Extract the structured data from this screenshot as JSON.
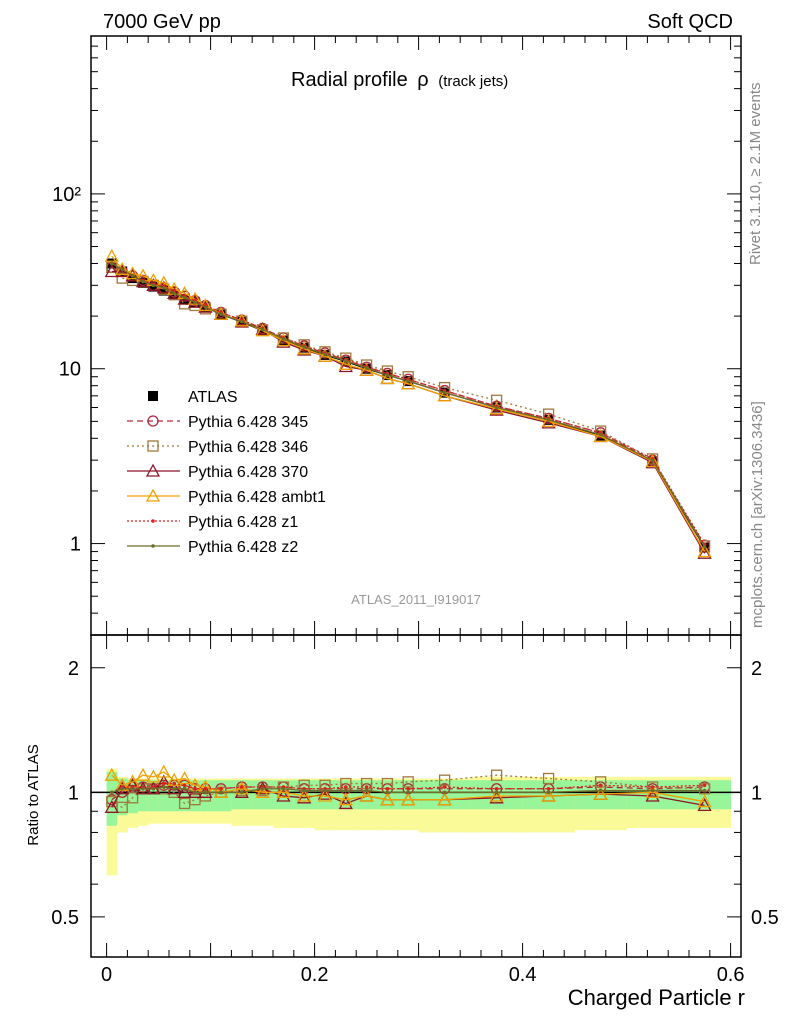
{
  "header": {
    "left": "7000 GeV pp",
    "right": "Soft QCD",
    "title_main": "Radial profile",
    "title_symbol": "ρ",
    "title_sub": "(track jets)",
    "side_top": "Rivet 3.1.10, ≥ 2.1M events",
    "side_bottom": "mcplots.cern.ch [arXiv:1306.3436]",
    "analysis_id": "ATLAS_2011_I919017"
  },
  "colors": {
    "atlas": "#000000",
    "p345": "#b0283c",
    "p346": "#a0783c",
    "p370": "#8c1428",
    "ambt1": "#f0a000",
    "z1": "#e02020",
    "z2": "#6e6e28",
    "band_inner": "#99f599",
    "band_outer": "#fafa99"
  },
  "chart_data": [
    {
      "type": "line",
      "yscale": "log",
      "ylim": [
        0.3,
        800
      ],
      "xlim": [
        -0.015,
        0.61
      ],
      "y_tick_labels": [
        "1",
        "10",
        "10²"
      ],
      "legend_position": "middle-left",
      "x": [
        0.005,
        0.015,
        0.025,
        0.035,
        0.045,
        0.055,
        0.065,
        0.075,
        0.085,
        0.095,
        0.11,
        0.13,
        0.15,
        0.17,
        0.19,
        0.21,
        0.23,
        0.25,
        0.27,
        0.29,
        0.325,
        0.375,
        0.425,
        0.475,
        0.525,
        0.575
      ],
      "series": [
        {
          "name": "ATLAS",
          "key": "atlas",
          "marker": "square-filled",
          "values": [
            40,
            36,
            33,
            31,
            29.5,
            28,
            26.5,
            25,
            24,
            22.5,
            20.5,
            18.5,
            16.5,
            14.5,
            13.2,
            12,
            11,
            10,
            9.2,
            8.5,
            7.3,
            6,
            5.1,
            4.15,
            2.95,
            0.95
          ]
        },
        {
          "name": "Pythia 6.428 345",
          "key": "p345",
          "marker": "circle-open",
          "dash": "6,4",
          "values": [
            38,
            36,
            34,
            32,
            30,
            29,
            27.5,
            26,
            24.5,
            23,
            21,
            19,
            17,
            15,
            13.5,
            12.3,
            11.2,
            10.2,
            9.4,
            8.7,
            7.5,
            6.1,
            5.2,
            4.3,
            3.0,
            0.98
          ]
        },
        {
          "name": "Pythia 6.428 346",
          "key": "p346",
          "marker": "square-open",
          "dash": "2,3",
          "values": [
            38,
            33,
            32,
            31.5,
            30,
            28.5,
            26.5,
            23.5,
            23,
            22,
            20.5,
            18.7,
            16.7,
            15,
            13.7,
            12.5,
            11.5,
            10.5,
            9.7,
            9,
            7.8,
            6.6,
            5.5,
            4.4,
            3.05,
            0.97
          ]
        },
        {
          "name": "Pythia 6.428 370",
          "key": "p370",
          "marker": "triangle-open",
          "values": [
            36,
            36,
            34,
            31.5,
            30,
            29,
            27,
            25,
            24,
            22.5,
            20.5,
            18.5,
            16.8,
            14.2,
            12.8,
            11.8,
            10.3,
            9.8,
            8.8,
            8.2,
            7,
            5.8,
            4.9,
            4.1,
            2.9,
            0.88
          ]
        },
        {
          "name": "Pythia 6.428 ambt1",
          "key": "ambt1",
          "marker": "triangle-open",
          "values": [
            44,
            37,
            35,
            34,
            32,
            31,
            28.5,
            27,
            25,
            23,
            20.5,
            18.8,
            16.5,
            14.5,
            13,
            11.8,
            10.6,
            9.8,
            8.8,
            8.2,
            7,
            5.9,
            5,
            4.1,
            2.95,
            0.9
          ]
        },
        {
          "name": "Pythia 6.428 z1",
          "key": "z1",
          "marker": "dot",
          "dash": "2,2",
          "values": [
            40,
            37,
            34,
            32,
            30.5,
            29.5,
            28,
            26,
            24.5,
            23,
            21,
            19,
            17,
            15,
            13.5,
            12.3,
            11.3,
            10.3,
            9.4,
            8.7,
            7.5,
            6.1,
            5.2,
            4.3,
            3.05,
            0.99
          ]
        },
        {
          "name": "Pythia 6.428 z2",
          "key": "z2",
          "marker": "dot",
          "values": [
            40,
            37,
            34,
            31.5,
            30,
            29,
            27,
            25.5,
            24,
            22.5,
            20.5,
            18.6,
            16.8,
            14.8,
            13.3,
            12.1,
            11.1,
            10.1,
            9.2,
            8.5,
            7.3,
            6,
            5.1,
            4.2,
            2.98,
            0.96
          ]
        }
      ]
    },
    {
      "type": "line",
      "yscale": "log",
      "ylabel": "Ratio to ATLAS",
      "xlabel": "Charged Particle r",
      "ylim": [
        0.4,
        2.4
      ],
      "xlim": [
        -0.015,
        0.61
      ],
      "x_ticks": [
        0,
        0.2,
        0.4,
        0.6
      ],
      "x_tick_labels": [
        "0",
        "0.2",
        "0.4",
        "0.6"
      ],
      "y_ticks": [
        0.5,
        1,
        2
      ],
      "y_tick_labels": [
        "0.5",
        "1",
        "2"
      ],
      "band_edges": [
        0,
        0.01,
        0.02,
        0.03,
        0.04,
        0.05,
        0.06,
        0.07,
        0.08,
        0.09,
        0.1,
        0.12,
        0.14,
        0.16,
        0.18,
        0.2,
        0.22,
        0.24,
        0.26,
        0.28,
        0.3,
        0.35,
        0.4,
        0.45,
        0.5,
        0.55,
        0.6
      ],
      "band_inner_lo": [
        0.83,
        0.88,
        0.89,
        0.9,
        0.9,
        0.9,
        0.9,
        0.9,
        0.9,
        0.9,
        0.9,
        0.91,
        0.91,
        0.91,
        0.91,
        0.91,
        0.91,
        0.91,
        0.91,
        0.91,
        0.91,
        0.91,
        0.91,
        0.91,
        0.91,
        0.91
      ],
      "band_inner_hi": [
        1.12,
        1.08,
        1.07,
        1.07,
        1.07,
        1.07,
        1.07,
        1.07,
        1.07,
        1.07,
        1.07,
        1.07,
        1.07,
        1.07,
        1.07,
        1.07,
        1.07,
        1.07,
        1.07,
        1.07,
        1.07,
        1.07,
        1.07,
        1.07,
        1.07,
        1.07
      ],
      "band_outer_lo": [
        0.63,
        0.8,
        0.82,
        0.83,
        0.84,
        0.84,
        0.84,
        0.84,
        0.84,
        0.84,
        0.84,
        0.83,
        0.83,
        0.82,
        0.82,
        0.81,
        0.81,
        0.81,
        0.81,
        0.81,
        0.8,
        0.8,
        0.8,
        0.81,
        0.82,
        0.82
      ],
      "band_outer_hi": [
        1.14,
        1.09,
        1.08,
        1.08,
        1.08,
        1.08,
        1.08,
        1.08,
        1.08,
        1.08,
        1.08,
        1.08,
        1.08,
        1.08,
        1.08,
        1.08,
        1.08,
        1.08,
        1.08,
        1.08,
        1.08,
        1.09,
        1.09,
        1.09,
        1.09,
        1.09
      ],
      "x": [
        0.005,
        0.015,
        0.025,
        0.035,
        0.045,
        0.055,
        0.065,
        0.075,
        0.085,
        0.095,
        0.11,
        0.13,
        0.15,
        0.17,
        0.19,
        0.21,
        0.23,
        0.25,
        0.27,
        0.29,
        0.325,
        0.375,
        0.425,
        0.475,
        0.525,
        0.575
      ],
      "series": [
        {
          "name": "Pythia 6.428 345",
          "key": "p345",
          "marker": "circle-open",
          "dash": "6,4",
          "values": [
            0.96,
            1.0,
            1.03,
            1.03,
            1.02,
            1.04,
            1.04,
            1.04,
            1.02,
            1.02,
            1.02,
            1.03,
            1.03,
            1.03,
            1.02,
            1.02,
            1.02,
            1.02,
            1.02,
            1.02,
            1.02,
            1.02,
            1.02,
            1.03,
            1.02,
            1.03
          ]
        },
        {
          "name": "Pythia 6.428 346",
          "key": "p346",
          "marker": "square-open",
          "dash": "2,3",
          "values": [
            0.95,
            0.92,
            0.97,
            1.02,
            1.02,
            1.02,
            1.0,
            0.94,
            0.96,
            0.98,
            1.0,
            1.01,
            1.01,
            1.03,
            1.04,
            1.04,
            1.05,
            1.05,
            1.05,
            1.06,
            1.07,
            1.1,
            1.08,
            1.06,
            1.03,
            1.02
          ]
        },
        {
          "name": "Pythia 6.428 370",
          "key": "p370",
          "marker": "triangle-open",
          "values": [
            0.92,
            1.02,
            1.04,
            1.02,
            1.02,
            1.06,
            1.02,
            1.0,
            1.0,
            1.0,
            1.0,
            1.0,
            1.02,
            0.98,
            0.97,
            0.99,
            0.94,
            0.98,
            0.96,
            0.96,
            0.96,
            0.97,
            0.98,
            0.99,
            0.98,
            0.93
          ]
        },
        {
          "name": "Pythia 6.428 ambt1",
          "key": "ambt1",
          "marker": "triangle-open",
          "values": [
            1.1,
            1.04,
            1.06,
            1.1,
            1.09,
            1.12,
            1.07,
            1.08,
            1.04,
            1.03,
            1.0,
            1.02,
            1.0,
            1.0,
            0.98,
            0.98,
            0.96,
            0.98,
            0.96,
            0.96,
            0.96,
            0.98,
            0.98,
            0.99,
            1.0,
            0.95
          ]
        },
        {
          "name": "Pythia 6.428 z1",
          "key": "z1",
          "marker": "dot",
          "dash": "2,2",
          "values": [
            1.0,
            1.03,
            1.03,
            1.03,
            1.03,
            1.05,
            1.05,
            1.04,
            1.02,
            1.02,
            1.02,
            1.03,
            1.03,
            1.03,
            1.02,
            1.02,
            1.03,
            1.03,
            1.02,
            1.02,
            1.03,
            1.02,
            1.02,
            1.04,
            1.03,
            1.04
          ]
        },
        {
          "name": "Pythia 6.428 z2",
          "key": "z2",
          "marker": "dot",
          "values": [
            1.0,
            1.02,
            1.02,
            1.02,
            1.02,
            1.03,
            1.02,
            1.02,
            1.0,
            1.0,
            1.0,
            1.0,
            1.02,
            1.02,
            1.01,
            1.01,
            1.01,
            1.01,
            1.0,
            1.0,
            1.0,
            1.0,
            1.0,
            1.01,
            1.01,
            1.01
          ]
        }
      ]
    }
  ]
}
